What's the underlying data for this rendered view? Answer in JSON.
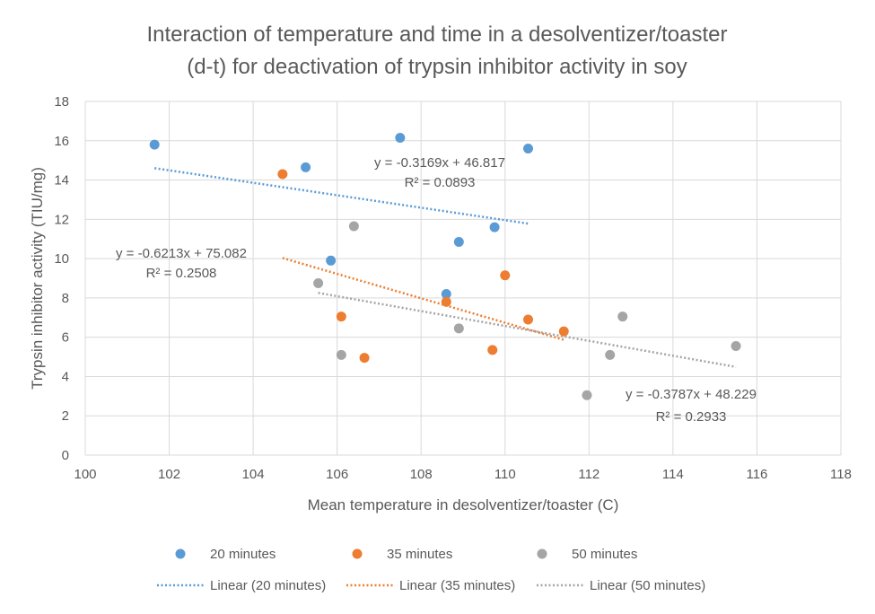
{
  "chart_data": {
    "type": "scatter",
    "title_lines": [
      "Interaction of temperature and time in a desolventizer/toaster",
      "(d-t) for deactivation of trypsin inhibitor activity in soy"
    ],
    "xlabel": "Mean temperature in desolventizer/toaster (C)",
    "ylabel": "Trypsin inhibitor activity (TIU/mg)",
    "xlim": [
      100,
      118
    ],
    "ylim": [
      0,
      18
    ],
    "xticks": [
      100,
      102,
      104,
      106,
      108,
      110,
      112,
      114,
      116,
      118
    ],
    "yticks": [
      0,
      2,
      4,
      6,
      8,
      10,
      12,
      14,
      16,
      18
    ],
    "grid": true,
    "legend_position": "bottom",
    "series": [
      {
        "name": "20 minutes",
        "color": "#5B9BD5",
        "points": [
          [
            101.65,
            15.8
          ],
          [
            105.25,
            14.65
          ],
          [
            107.5,
            16.15
          ],
          [
            110.55,
            15.6
          ],
          [
            109.75,
            11.6
          ],
          [
            108.9,
            10.85
          ],
          [
            105.85,
            9.9
          ],
          [
            108.6,
            8.2
          ]
        ],
        "trendline": {
          "name": "Linear (20 minutes)",
          "x_range": [
            101.65,
            110.55
          ],
          "slope": -0.3169,
          "intercept": 46.817,
          "equation": "y = -0.3169x + 46.817",
          "r2": "R² = 0.0893"
        }
      },
      {
        "name": "35 minutes",
        "color": "#ED7D31",
        "points": [
          [
            104.7,
            14.3
          ],
          [
            110.0,
            9.15
          ],
          [
            108.6,
            7.8
          ],
          [
            106.1,
            7.05
          ],
          [
            110.55,
            6.9
          ],
          [
            111.4,
            6.3
          ],
          [
            109.7,
            5.35
          ],
          [
            106.65,
            4.95
          ]
        ],
        "trendline": {
          "name": "Linear (35 minutes)",
          "x_range": [
            104.7,
            111.4
          ],
          "slope": -0.6213,
          "intercept": 75.082,
          "equation": "y = -0.6213x + 75.082",
          "r2": "R² = 0.2508"
        }
      },
      {
        "name": "50 minutes",
        "color": "#A5A5A5",
        "points": [
          [
            106.4,
            11.65
          ],
          [
            105.55,
            8.75
          ],
          [
            108.9,
            6.45
          ],
          [
            112.8,
            7.05
          ],
          [
            115.5,
            5.55
          ],
          [
            112.5,
            5.1
          ],
          [
            106.1,
            5.1
          ],
          [
            111.95,
            3.05
          ]
        ],
        "trendline": {
          "name": "Linear (50 minutes)",
          "x_range": [
            105.55,
            115.5
          ],
          "slope": -0.3787,
          "intercept": 48.229,
          "equation": "y = -0.3787x + 48.229",
          "r2": "R² = 0.2933"
        }
      }
    ]
  }
}
